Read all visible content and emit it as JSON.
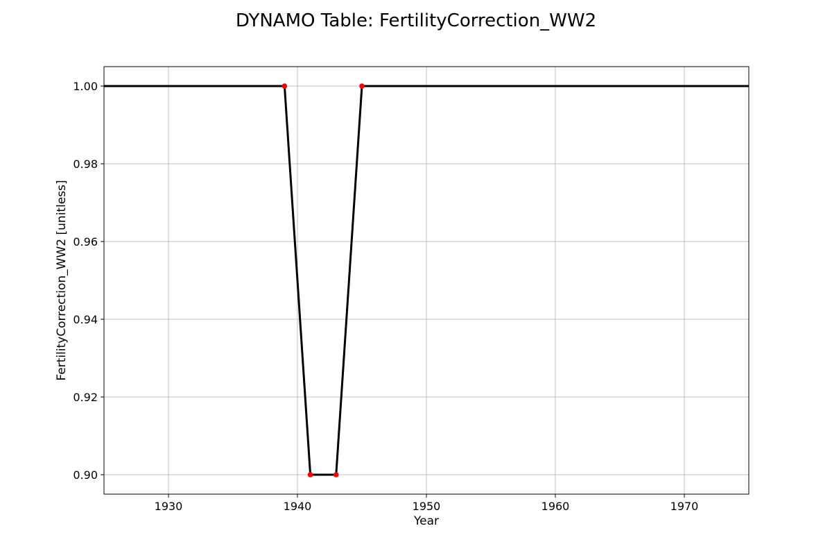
{
  "chart_data": {
    "type": "line",
    "title": "DYNAMO Table: FertilityCorrection_WW2",
    "xlabel": "Year",
    "ylabel": "FertilityCorrection_WW2 [unitless]",
    "xlim": [
      1925,
      1975
    ],
    "ylim": [
      0.895,
      1.005
    ],
    "xticks": [
      1930,
      1940,
      1950,
      1960,
      1970
    ],
    "xtick_labels": [
      "1930",
      "1940",
      "1950",
      "1960",
      "1970"
    ],
    "yticks": [
      0.9,
      0.92,
      0.94,
      0.96,
      0.98,
      1.0
    ],
    "ytick_labels": [
      "0.90",
      "0.92",
      "0.94",
      "0.96",
      "0.98",
      "1.00"
    ],
    "grid": true,
    "series": [
      {
        "x": [
          1925,
          1939,
          1941,
          1943,
          1945,
          1975
        ],
        "y": [
          1.0,
          1.0,
          0.9,
          0.9,
          1.0,
          1.0
        ],
        "color": "#000000"
      }
    ],
    "points": {
      "x": [
        1939,
        1941,
        1943,
        1945
      ],
      "y": [
        1.0,
        0.9,
        0.9,
        1.0
      ],
      "color": "#ff0000"
    }
  }
}
